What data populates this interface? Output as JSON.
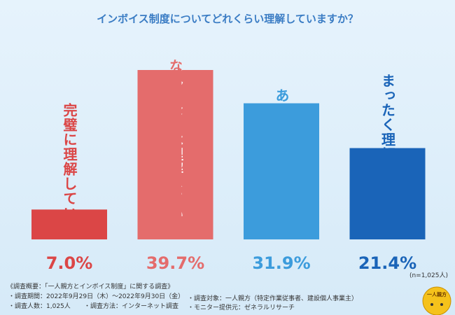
{
  "chart_data": {
    "type": "bar",
    "title": "インボイス制度についてどれくらい理解していますか？",
    "categories": [
      "完璧に理解している",
      "なんとなくは理解している",
      "あまり理解していない",
      "まったく理解していない"
    ],
    "values": [
      7.0,
      39.7,
      31.9,
      21.4
    ],
    "value_labels": [
      "7.0%",
      "39.7%",
      "31.9%",
      "21.4%"
    ],
    "colors": [
      "#db4646",
      "#e46c6c",
      "#3c9cdc",
      "#1a64b8"
    ],
    "note": "(n=1,025人)"
  },
  "footer": {
    "heading": "《調査概要：「一人親方とインボイス制度」に関する調査》",
    "items": [
      "・調査期間：2022年9月29日（木）～2022年9月30日（金）",
      "・調査対象：一人親方（特定作業従事者、建設個人事業主）",
      "・調査人数：1,025人",
      "・調査方法：インターネット調査",
      "・モニター提供元：ゼネラルリサーチ"
    ],
    "logo": "一人親方"
  }
}
